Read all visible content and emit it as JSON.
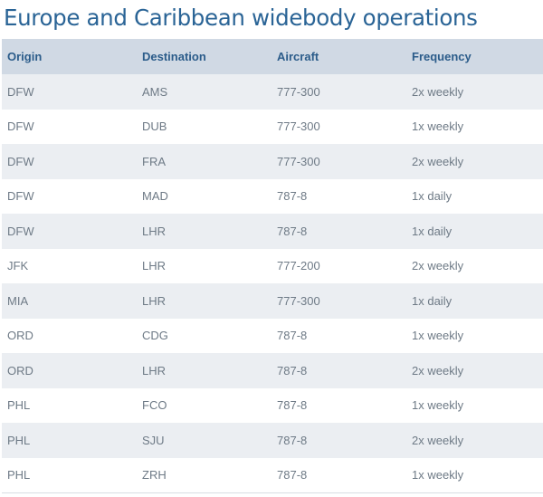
{
  "title": "Europe and Caribbean widebody operations",
  "table": {
    "headers": [
      "Origin",
      "Destination",
      "Aircraft",
      "Frequency"
    ],
    "rows": [
      {
        "origin": "DFW",
        "destination": "AMS",
        "aircraft": "777-300",
        "frequency": "2x weekly"
      },
      {
        "origin": "DFW",
        "destination": "DUB",
        "aircraft": "777-300",
        "frequency": "1x weekly"
      },
      {
        "origin": "DFW",
        "destination": "FRA",
        "aircraft": "777-300",
        "frequency": "2x weekly"
      },
      {
        "origin": "DFW",
        "destination": "MAD",
        "aircraft": "787-8",
        "frequency": "1x daily"
      },
      {
        "origin": "DFW",
        "destination": "LHR",
        "aircraft": "787-8",
        "frequency": "1x daily"
      },
      {
        "origin": "JFK",
        "destination": "LHR",
        "aircraft": "777-200",
        "frequency": "2x weekly"
      },
      {
        "origin": "MIA",
        "destination": "LHR",
        "aircraft": "777-300",
        "frequency": "1x daily"
      },
      {
        "origin": "ORD",
        "destination": "CDG",
        "aircraft": "787-8",
        "frequency": "1x weekly"
      },
      {
        "origin": "ORD",
        "destination": "LHR",
        "aircraft": "787-8",
        "frequency": "2x weekly"
      },
      {
        "origin": "PHL",
        "destination": "FCO",
        "aircraft": "787-8",
        "frequency": "1x weekly"
      },
      {
        "origin": "PHL",
        "destination": "SJU",
        "aircraft": "787-8",
        "frequency": "2x weekly"
      },
      {
        "origin": "PHL",
        "destination": "ZRH",
        "aircraft": "787-8",
        "frequency": "1x weekly"
      }
    ]
  },
  "colors": {
    "title": "#2a6496",
    "header_bg": "#d0d9e4",
    "header_text": "#2b5c8a",
    "row_stripe": "#ebeef2",
    "cell_text": "#6e7a86"
  }
}
